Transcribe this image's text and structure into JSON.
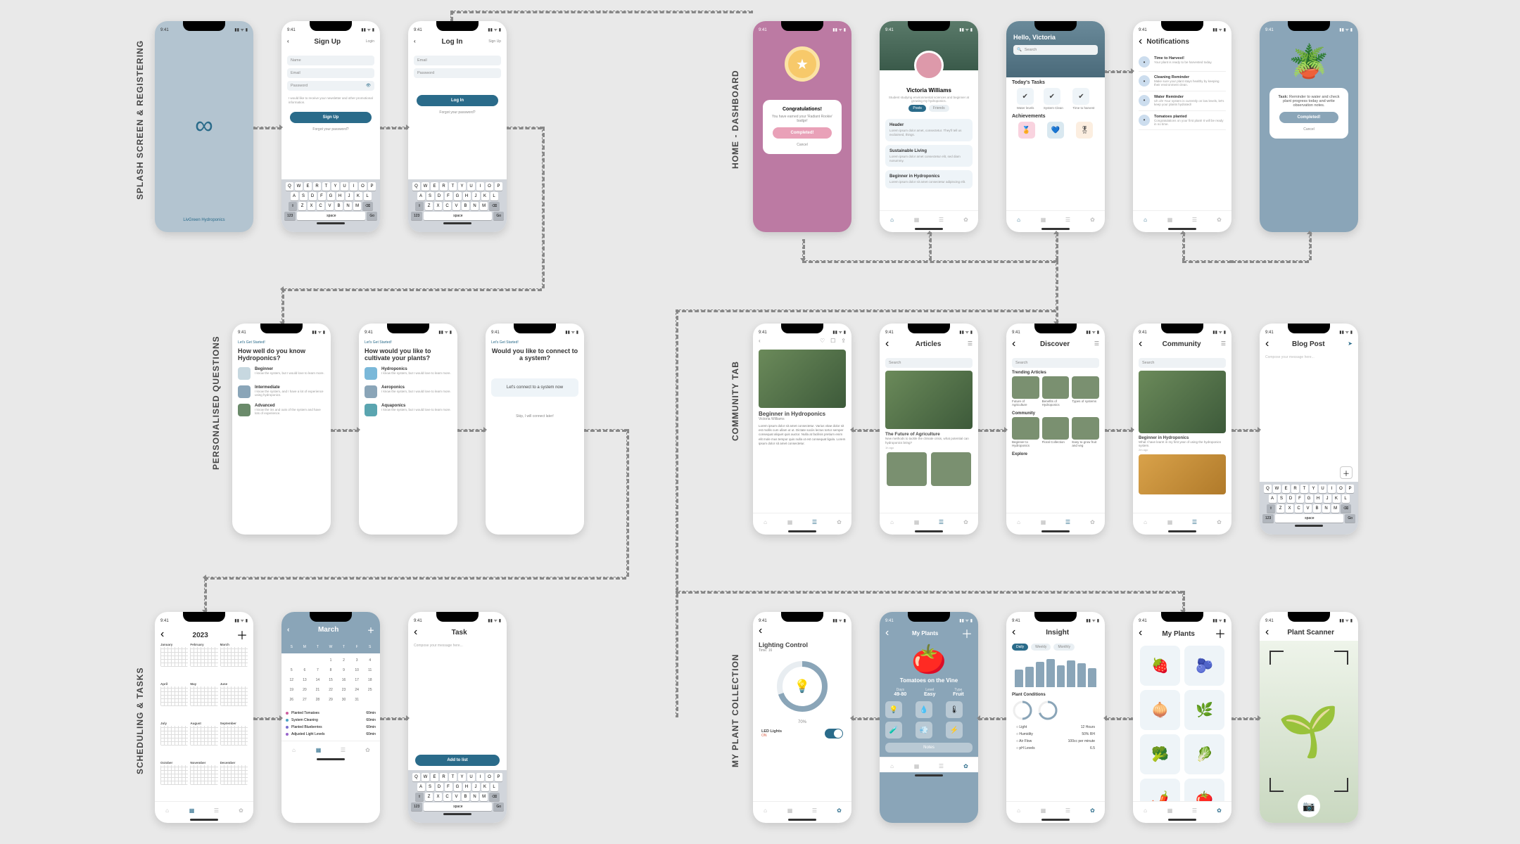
{
  "colors": {
    "primary": "#2a6b8a",
    "blue_soft": "#8aa5b8",
    "pink": "#bc7aa3",
    "pink_btn": "#e9a1b8",
    "card_bg": "#eef4f8",
    "bg": "#e9e9e9",
    "text": "#333333",
    "muted": "#999999"
  },
  "sections": {
    "splash": "SPLASH SCREEN & REGISTERING",
    "questions": "PERSONALISED QUESTIONS",
    "schedule": "SCHEDULING & TASKS",
    "home": "HOME - DASHBOARD",
    "community": "COMMUNITY TAB",
    "plants": "MY PLANT COLLECTION"
  },
  "status_time": "9:41",
  "keyboard": {
    "row1": [
      "Q",
      "W",
      "E",
      "R",
      "T",
      "Y",
      "U",
      "I",
      "O",
      "P"
    ],
    "row2": [
      "A",
      "S",
      "D",
      "F",
      "G",
      "H",
      "J",
      "K",
      "L"
    ],
    "row3": [
      "Z",
      "X",
      "C",
      "V",
      "B",
      "N",
      "M"
    ],
    "fn123": "123",
    "space": "space",
    "go": "Go"
  },
  "splash": {
    "brand": "LivGreen Hydroponics"
  },
  "signup": {
    "title": "Sign Up",
    "tab_login": "Login",
    "fields": {
      "name": "Name",
      "email": "Email",
      "password": "Password"
    },
    "terms": "I would like to receive your newsletter and other promotional information.",
    "button": "Sign Up",
    "forgot": "Forgot your password?"
  },
  "login": {
    "title": "Log In",
    "tab_signup": "Sign Up",
    "fields": {
      "email": "Email",
      "password": "Password"
    },
    "button": "Log In",
    "forgot": "Forgot your password?"
  },
  "q1": {
    "eyebrow": "Let's Get Started!",
    "title": "How well do you know Hydroponics?",
    "options": [
      {
        "title": "Beginner",
        "desc": "I know the system, but I would love to learn more."
      },
      {
        "title": "Intermediate",
        "desc": "I know the system, and I have a lot of experience using hydroponics."
      },
      {
        "title": "Advanced",
        "desc": "I know the ins and outs of the system and have lots of experience."
      }
    ]
  },
  "q2": {
    "eyebrow": "Let's Get Started!",
    "title": "How would you like to cultivate your plants?",
    "options": [
      {
        "title": "Hydroponics",
        "desc": "I know the system, but I would love to learn more."
      },
      {
        "title": "Aeroponics",
        "desc": "I know the system, but I would love to learn more."
      },
      {
        "title": "Aquaponics",
        "desc": "I know the system, but I would love to learn more."
      }
    ]
  },
  "q3": {
    "eyebrow": "Let's Get Started!",
    "title": "Would you like to connect to a system?",
    "connect_btn": "Let's connect to a system now",
    "skip": "Skip, I will connect later!"
  },
  "year": {
    "title": "2023",
    "months": [
      "January",
      "February",
      "March",
      "April",
      "May",
      "June",
      "July",
      "August",
      "September",
      "October",
      "November",
      "December"
    ]
  },
  "month": {
    "title": "March",
    "dow": [
      "S",
      "M",
      "T",
      "W",
      "T",
      "F",
      "S"
    ],
    "legend": [
      {
        "label": "Planted Tomatoes",
        "time": "60min",
        "color": "#cc5f9e"
      },
      {
        "label": "System Cleaning",
        "time": "60min",
        "color": "#4aa3c4"
      },
      {
        "label": "Planted Blueberries",
        "time": "60min",
        "color": "#7a6fcf"
      },
      {
        "label": "Adjusted Light Levels",
        "time": "60min",
        "color": "#9966cc"
      }
    ],
    "days_in_month": 31,
    "first_dow": 3
  },
  "task": {
    "title": "Task",
    "placeholder": "Compose your message here...",
    "button": "Add to list"
  },
  "badge": {
    "congrats_title": "Congratulations!",
    "congrats_desc": "You have earned your 'Radiant Rookie' badge!",
    "btn": "Completed!",
    "cancel": "Cancel"
  },
  "profile": {
    "name": "Victoria Williams",
    "subtitle": "Student studying environmental sciences and beginner at growing my hydroponics.",
    "tabs": [
      "Posts",
      "Friends"
    ],
    "cards": [
      {
        "title": "Header",
        "desc": "Lorem ipsum dolor amet, consectetur. They'll tell us exclaimed, things."
      },
      {
        "title": "Sustainable Living",
        "desc": "Lorem ipsum dolor amet consectetur elit, sed diam nonummy."
      },
      {
        "title": "Beginner in Hydroponics",
        "desc": "Lorem ipsum dolor sit amet consectetur adipiscing elit."
      }
    ]
  },
  "dashboard": {
    "greeting": "Hello, Victoria",
    "search": "Search",
    "tasks_title": "Today's Tasks",
    "tasks": [
      {
        "label": "Water levels"
      },
      {
        "label": "System Clean"
      },
      {
        "label": "Time to harvest"
      }
    ],
    "ach_title": "Achievements"
  },
  "notifications": {
    "title": "Notifications",
    "items": [
      {
        "title": "Time to Harvest!",
        "desc": "Your plant is ready to be harvested today."
      },
      {
        "title": "Cleaning Reminder",
        "desc": "Make sure your plant stays healthy by keeping their environment clean."
      },
      {
        "title": "Water Reminder",
        "desc": "Uh oh! Your system is currently on low levels, let's keep your plants hydrated!"
      },
      {
        "title": "Tomatoes planted",
        "desc": "Congratulations on your first plant! It will be ready in no time."
      }
    ]
  },
  "reminder_modal": {
    "title": "Task:",
    "desc": "Reminder to water and check plant progress today and write observation notes.",
    "btn": "Completed!",
    "cancel": "Cancel"
  },
  "article": {
    "title": "Beginner in Hydroponics",
    "author": "Victoria Williams",
    "body": "Lorem ipsum dolor sit amet consectetur. Varius vitae dolor sit est mollis cum ullam ut ut. Dictate sociis lectus tortor semper consequat aliquet quis auctor. Nulla at facilisis pretium enim elit mole mus tempor quis nulla ut est consequat ligula. Lorem ipsum dolor sit amet consectetur."
  },
  "articles": {
    "title": "Articles",
    "search": "Search",
    "featured_title": "The Future of Agriculture",
    "featured_desc": "New methods to tackle the climate crisis, what potential can hydroponics bring?",
    "featured_time": "1h ago"
  },
  "discover": {
    "title": "Discover",
    "search": "Search",
    "trending": "Trending Articles",
    "trending_items": [
      {
        "label": "Future of Agriculture"
      },
      {
        "label": "Benefits of Hydroponics"
      },
      {
        "label": "Types of systems"
      }
    ],
    "community_title": "Community",
    "community_items": [
      {
        "label": "Beginner to Hydroponics"
      },
      {
        "label": "Floral Collection"
      },
      {
        "label": "Easy to grow fruit and veg"
      }
    ],
    "explore": "Explore"
  },
  "community": {
    "title": "Community",
    "search": "Search",
    "post_title": "Beginner in Hydroponics",
    "post_desc": "What I have learnt in my first year of using the hydroponics system.",
    "post_time": "2m ago"
  },
  "blog": {
    "title": "Blog Post",
    "placeholder": "Compose your message here..."
  },
  "lighting": {
    "title": "Lighting Control",
    "time_label": "Time: 16",
    "percent": "70%",
    "led_label": "LED Lights",
    "led_state": "ON"
  },
  "plant_detail": {
    "title": "Tomatoes on the Vine",
    "stats": [
      {
        "label": "Days",
        "value": "49-80"
      },
      {
        "label": "Level",
        "value": "Easy"
      },
      {
        "label": "Type",
        "value": "Fruit"
      }
    ],
    "notes": "Notes"
  },
  "insight": {
    "title": "Insight",
    "chart": {
      "values": [
        60,
        70,
        85,
        95,
        75,
        90,
        80,
        65
      ],
      "color": "#8aa5b8",
      "max": 100
    },
    "conditions_title": "Plant Conditions",
    "conditions": [
      {
        "label": "Light",
        "value": "12 Hours"
      },
      {
        "label": "Humidity",
        "value": "50% RH"
      },
      {
        "label": "Air Flow",
        "value": "100cc per minute"
      },
      {
        "label": "pH Levels",
        "value": "6.5"
      }
    ],
    "tabs": [
      "Daily",
      "Weekly",
      "Monthly"
    ]
  },
  "myplants": {
    "title": "My Plants",
    "emojis": [
      "🍓",
      "🫐",
      "🧅",
      "🌿",
      "🥦",
      "🥬",
      "🌶️",
      "🍅"
    ]
  },
  "scanner": {
    "title": "Plant Scanner"
  }
}
